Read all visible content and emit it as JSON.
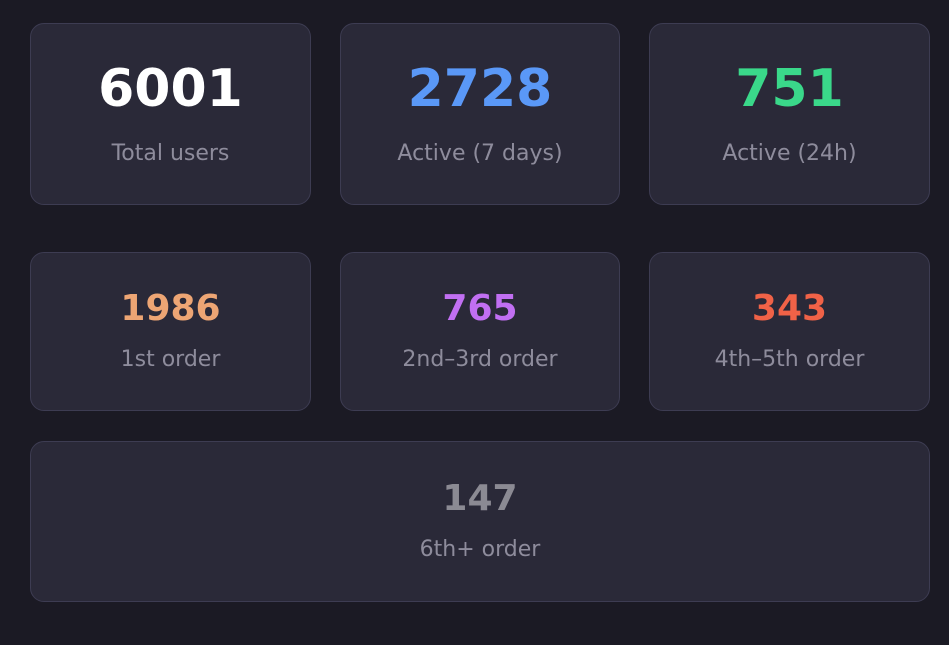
{
  "stats": {
    "total_users": {
      "value": "6001",
      "label": "Total users",
      "color": "#ffffff"
    },
    "active_7d": {
      "value": "2728",
      "label": "Active (7 days)",
      "color": "#5a98f7"
    },
    "active_24h": {
      "value": "751",
      "label": "Active (24h)",
      "color": "#3ad88a"
    }
  },
  "orders": {
    "first": {
      "value": "1986",
      "label": "1st order",
      "color": "#eda574"
    },
    "second_third": {
      "value": "765",
      "label": "2nd–3rd order",
      "color": "#c16ff2"
    },
    "fourth_fifth": {
      "value": "343",
      "label": "4th–5th order",
      "color": "#f06247"
    },
    "sixth_plus": {
      "value": "147",
      "label": "6th+ order",
      "color": "#8b8a93"
    }
  }
}
